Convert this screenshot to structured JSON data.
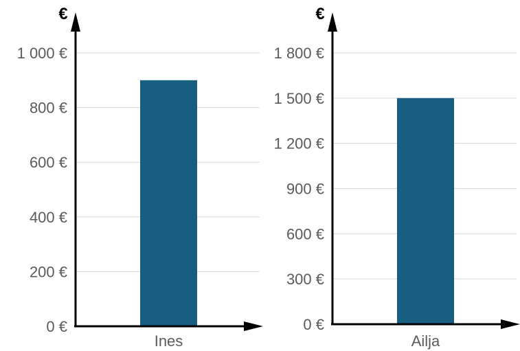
{
  "colors": {
    "bar": "#175e80",
    "grid": "#d9d9d9",
    "axis": "#000000",
    "text": "#5a5a5a"
  },
  "chart_data": [
    {
      "type": "bar",
      "categories": [
        "Ines"
      ],
      "values": [
        900
      ],
      "ylabel": "€",
      "ylim": [
        0,
        1000
      ],
      "yticks": [
        0,
        200,
        400,
        600,
        800,
        1000
      ],
      "ytick_labels": [
        "0 €",
        "200 €",
        "400 €",
        "600 €",
        "800 €",
        "1 000 €"
      ],
      "grid": true
    },
    {
      "type": "bar",
      "categories": [
        "Ailja"
      ],
      "values": [
        1500
      ],
      "ylabel": "€",
      "ylim": [
        0,
        1800
      ],
      "yticks": [
        0,
        300,
        600,
        900,
        1200,
        1500,
        1800
      ],
      "ytick_labels": [
        "0 €",
        "300 €",
        "600 €",
        "900 €",
        "1 200 €",
        "1 500 €",
        "1 800 €"
      ],
      "grid": true
    }
  ]
}
